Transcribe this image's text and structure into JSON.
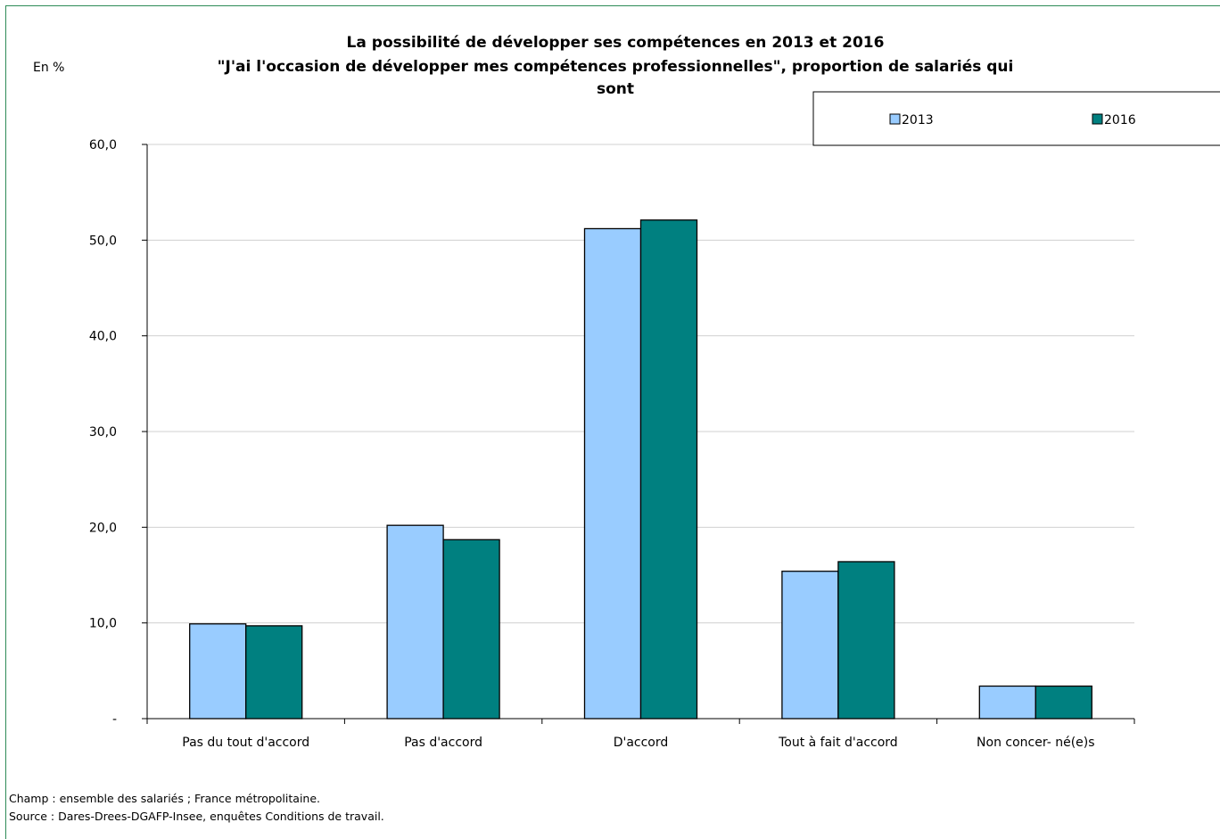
{
  "chart_data": {
    "type": "bar",
    "title_lines": [
      "La possibilité de développer ses compétences en 2013 et 2016",
      "\"J'ai l'occasion de développer mes compétences professionnelles\", proportion de salariés qui",
      "sont"
    ],
    "unit_label": "En %",
    "categories": [
      "Pas du tout d'accord",
      "Pas d'accord",
      "D'accord",
      "Tout à fait d'accord",
      "Non concer- né(e)s"
    ],
    "series": [
      {
        "name": "2013",
        "color": "#99ccff",
        "values": [
          9.9,
          20.2,
          51.2,
          15.4,
          3.4
        ]
      },
      {
        "name": "2016",
        "color": "#008080",
        "values": [
          9.7,
          18.7,
          52.1,
          16.4,
          3.4
        ]
      }
    ],
    "ylim": [
      0,
      60
    ],
    "y_ticks": [
      {
        "value": 0,
        "label": "-"
      },
      {
        "value": 10,
        "label": "10,0"
      },
      {
        "value": 20,
        "label": "20,0"
      },
      {
        "value": 30,
        "label": "30,0"
      },
      {
        "value": 40,
        "label": "40,0"
      },
      {
        "value": 50,
        "label": "50,0"
      },
      {
        "value": 60,
        "label": "60,0"
      }
    ],
    "grid": true,
    "legend_position": "top-right"
  },
  "notes": {
    "champ": "Champ : ensemble des salariés ; France métropolitaine.",
    "source": "Source : Dares-Drees-DGAFP-Insee, enquêtes Conditions de travail."
  }
}
